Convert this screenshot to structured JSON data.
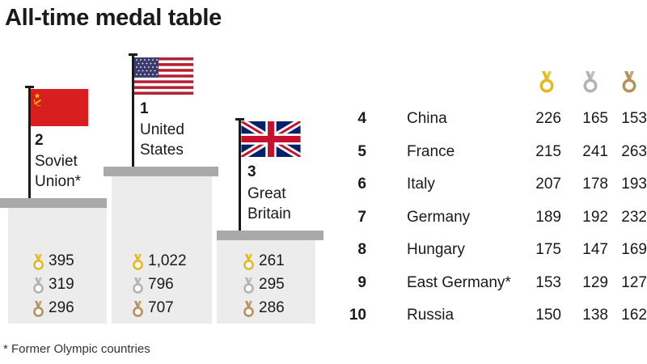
{
  "title": "All-time medal table",
  "footnote": "* Former Olympic countries",
  "colors": {
    "gold": "#e6b820",
    "silver": "#b3b3b3",
    "bronze": "#b8915a"
  },
  "chart_data": {
    "type": "table",
    "columns": [
      "gold",
      "silver",
      "bronze"
    ],
    "podium": [
      {
        "rank": "2",
        "country": "Soviet Union*",
        "name_lines": [
          "Soviet",
          "Union*"
        ],
        "flag": "soviet-flag",
        "gold": "395",
        "silver": "319",
        "bronze": "296"
      },
      {
        "rank": "1",
        "country": "United States",
        "name_lines": [
          "United",
          "States"
        ],
        "flag": "us-flag",
        "gold": "1,022",
        "silver": "796",
        "bronze": "707"
      },
      {
        "rank": "3",
        "country": "Great Britain",
        "name_lines": [
          "Great",
          "Britain"
        ],
        "flag": "uk-flag",
        "gold": "261",
        "silver": "295",
        "bronze": "286"
      }
    ],
    "rows": [
      {
        "rank": "4",
        "country": "China",
        "gold": "226",
        "silver": "165",
        "bronze": "153"
      },
      {
        "rank": "5",
        "country": "France",
        "gold": "215",
        "silver": "241",
        "bronze": "263"
      },
      {
        "rank": "6",
        "country": "Italy",
        "gold": "207",
        "silver": "178",
        "bronze": "193"
      },
      {
        "rank": "7",
        "country": "Germany",
        "gold": "189",
        "silver": "192",
        "bronze": "232"
      },
      {
        "rank": "8",
        "country": "Hungary",
        "gold": "175",
        "silver": "147",
        "bronze": "169"
      },
      {
        "rank": "9",
        "country": "East Germany*",
        "gold": "153",
        "silver": "129",
        "bronze": "127"
      },
      {
        "rank": "10",
        "country": "Russia",
        "gold": "150",
        "silver": "138",
        "bronze": "162"
      }
    ]
  }
}
